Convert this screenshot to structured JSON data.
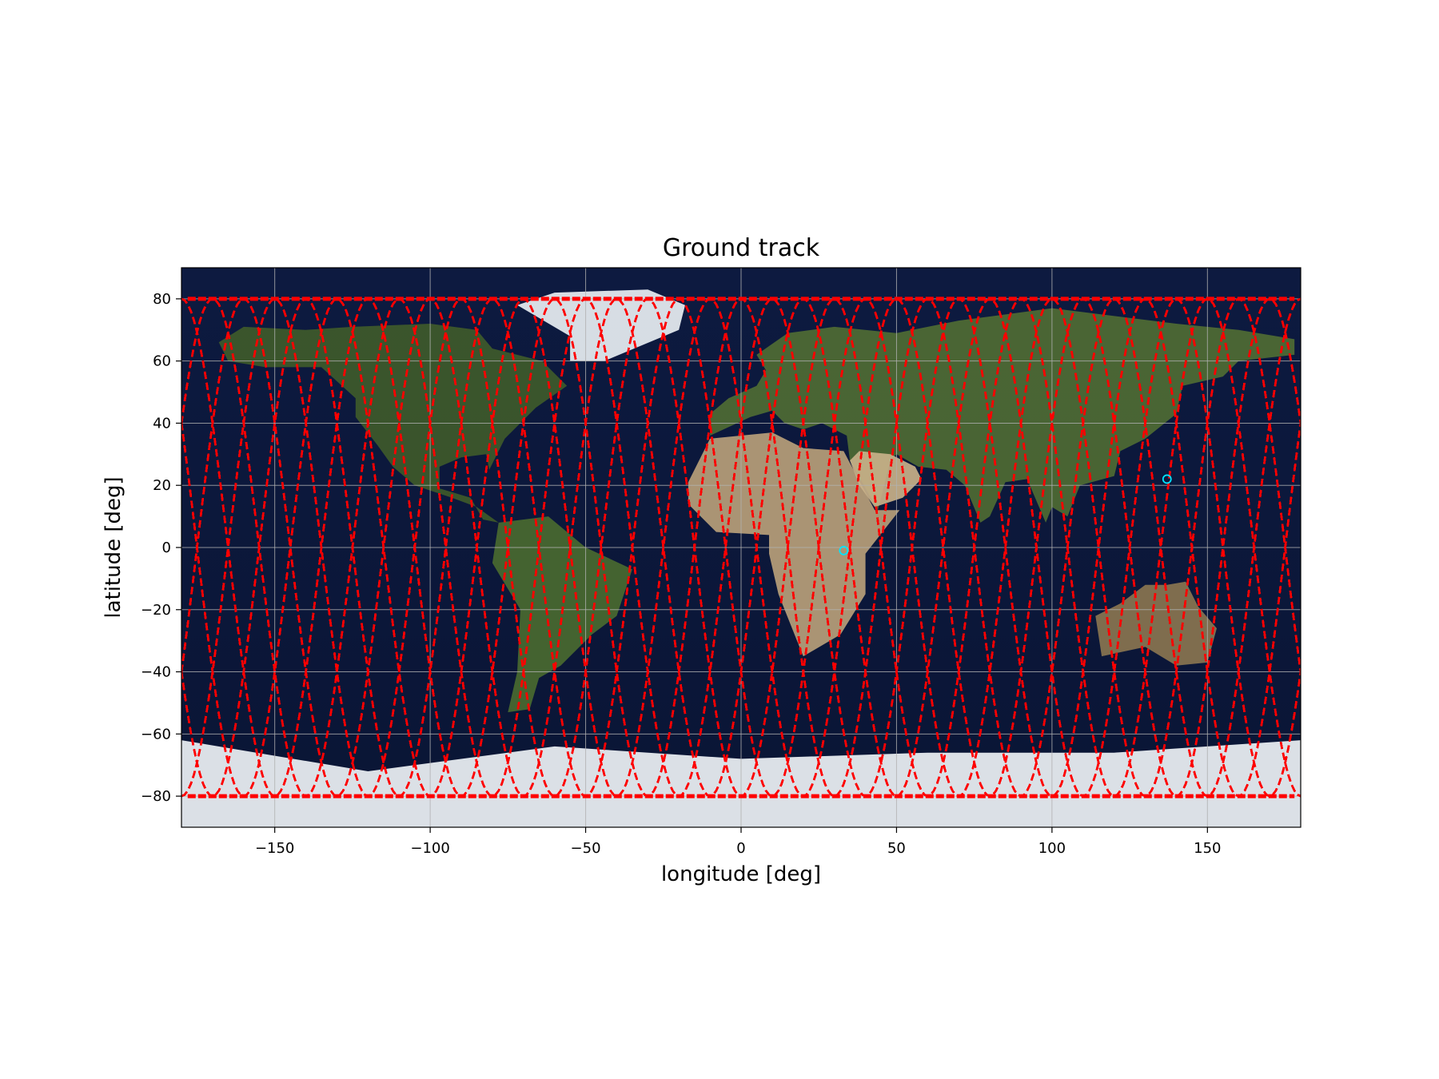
{
  "chart_data": {
    "type": "line",
    "title": "Ground track",
    "xlabel": "longitude [deg]",
    "ylabel": "latitude [deg]",
    "xlim": [
      -180,
      180
    ],
    "ylim": [
      -90,
      90
    ],
    "xticks": [
      -150,
      -100,
      -50,
      0,
      50,
      100,
      150
    ],
    "yticks": [
      -80,
      -60,
      -40,
      -20,
      0,
      20,
      40,
      60,
      80
    ],
    "grid": true,
    "background": "world-map-satellite-image",
    "series": [
      {
        "style": "dashed",
        "color": "#ff0000",
        "inclination_deg": 80,
        "lat_range": [
          -80,
          80
        ],
        "ascending_node_longitudes": [
          -175,
          -165,
          -155,
          -145,
          -135,
          -125,
          -115,
          -105,
          -95,
          -85,
          -75,
          -65,
          -55,
          -45,
          -35,
          -25,
          -15,
          -5,
          5,
          15,
          25,
          35,
          45,
          55,
          65,
          75,
          85,
          95,
          105,
          115,
          125,
          135,
          145,
          155,
          165,
          175
        ]
      }
    ],
    "markers": [
      {
        "type": "circle",
        "color": "#00e5ff",
        "lon": 137,
        "lat": 22
      },
      {
        "type": "circle",
        "color": "#00e5ff",
        "lon": 33,
        "lat": -1
      }
    ]
  }
}
